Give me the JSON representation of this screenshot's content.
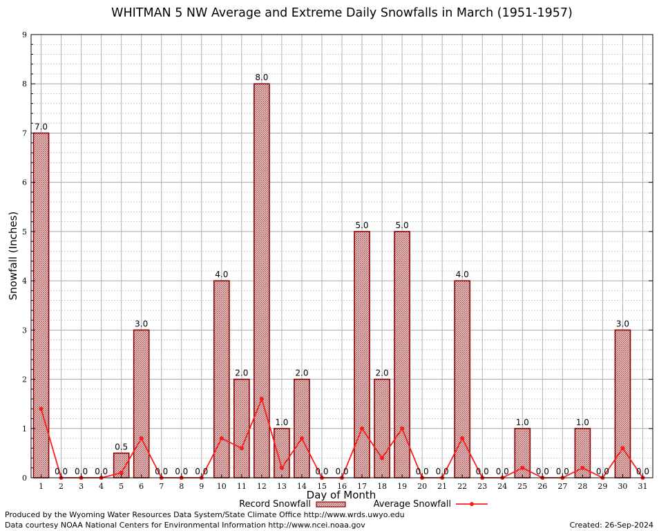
{
  "chart_data": {
    "type": "bar",
    "title": "WHITMAN 5 NW Average and Extreme Daily Snowfalls in March (1951-1957)",
    "xlabel": "Day of Month",
    "ylabel": "Snowfall (Inches)",
    "ylim": [
      0,
      9
    ],
    "yticks": [
      "0",
      "1",
      "2",
      "3",
      "4",
      "5",
      "6",
      "7",
      "8",
      "9"
    ],
    "categories": [
      "1",
      "2",
      "3",
      "4",
      "5",
      "6",
      "7",
      "8",
      "9",
      "10",
      "11",
      "12",
      "13",
      "14",
      "15",
      "16",
      "17",
      "18",
      "19",
      "20",
      "21",
      "22",
      "23",
      "24",
      "25",
      "26",
      "27",
      "28",
      "29",
      "30",
      "31"
    ],
    "grid": true,
    "legend_position": "bottom-center",
    "series": [
      {
        "name": "Record Snowfall",
        "type": "bar",
        "color": "#8b0000",
        "values": [
          7.0,
          0.0,
          0.0,
          0.0,
          0.5,
          3.0,
          0.0,
          0.0,
          0.0,
          4.0,
          2.0,
          8.0,
          1.0,
          2.0,
          0.0,
          0.0,
          5.0,
          2.0,
          5.0,
          0.0,
          0.0,
          4.0,
          0.0,
          0.0,
          1.0,
          0.0,
          0.0,
          1.0,
          0.0,
          3.0,
          0.0
        ],
        "labels": [
          "7.0",
          "0.0",
          "0.0",
          "0.0",
          "0.5",
          "3.0",
          "0.0",
          "0.0",
          "0.0",
          "4.0",
          "2.0",
          "8.0",
          "1.0",
          "2.0",
          "0.0",
          "0.0",
          "5.0",
          "2.0",
          "5.0",
          "0.0",
          "0.0",
          "4.0",
          "0.0",
          "0.0",
          "1.0",
          "0.0",
          "0.0",
          "1.0",
          "0.0",
          "3.0",
          "0.0"
        ]
      },
      {
        "name": "Average Snowfall",
        "type": "line",
        "color": "#ff1a1a",
        "values": [
          1.4,
          0.0,
          0.0,
          0.0,
          0.1,
          0.8,
          0.0,
          0.0,
          0.0,
          0.8,
          0.6,
          1.6,
          0.2,
          0.8,
          0.0,
          0.0,
          1.0,
          0.4,
          1.0,
          0.0,
          0.0,
          0.8,
          0.0,
          0.0,
          0.2,
          0.0,
          0.0,
          0.2,
          0.0,
          0.6,
          0.0
        ]
      }
    ]
  },
  "footer": {
    "produced_by": "Produced by the Wyoming Water Resources Data System/State Climate Office http://www.wrds.uwyo.edu",
    "data_courtesy": "Data courtesy NOAA National Centers for Environmental Information http://www.ncei.noaa.gov",
    "created": "Created:  26-Sep-2024"
  }
}
